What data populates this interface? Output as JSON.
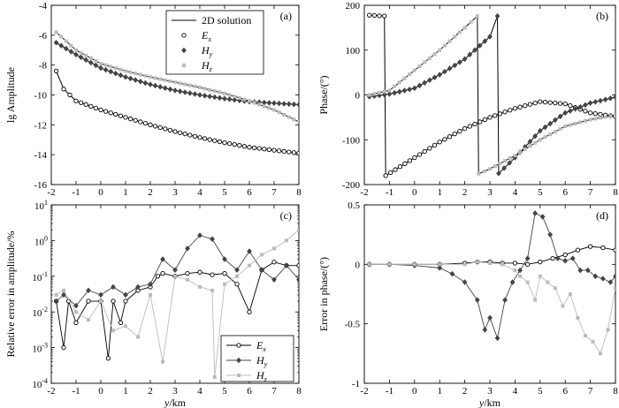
{
  "figure": {
    "legend_top": [
      {
        "label": "2D solution",
        "sym": "line"
      },
      {
        "label": "E",
        "sub": "x",
        "sym": "open-circle"
      },
      {
        "label": "H",
        "sub": "y",
        "sym": "diamond"
      },
      {
        "label": "H",
        "sub": "z",
        "sym": "gray-square"
      }
    ],
    "legend_bottom": [
      {
        "label": "E",
        "sub": "x",
        "sym": "open-circle"
      },
      {
        "label": "H",
        "sub": "y",
        "sym": "diamond"
      },
      {
        "label": "H",
        "sub": "z",
        "sym": "gray-square"
      }
    ],
    "xlabel_var": "y",
    "xlabel_unit": "/km",
    "colors": {
      "ex": "#000000",
      "hy": "#444444",
      "hz": "#bbbbbb",
      "solution": "#000000"
    }
  },
  "chart_data": [
    {
      "id": "a",
      "panel_label": "(a)",
      "type": "line",
      "ylabel": "lg Amplitude",
      "xlabel": "y/km",
      "xlim": [
        -2,
        8
      ],
      "ylim": [
        -16,
        -4
      ],
      "yscale": "linear",
      "xticks": [
        "-2",
        "-1",
        "0",
        "1",
        "2",
        "3",
        "4",
        "5",
        "6",
        "7",
        "8"
      ],
      "yticks": [
        "-4",
        "-6",
        "-8",
        "-10",
        "-12",
        "-14",
        "-16"
      ],
      "series": [
        {
          "name": "Ex",
          "x": [
            -1.8,
            -1.5,
            -1,
            0,
            1,
            2,
            3,
            4,
            5,
            6,
            7,
            8
          ],
          "y": [
            -8.4,
            -9.6,
            -10.4,
            -11.0,
            -11.5,
            -12.0,
            -12.45,
            -12.85,
            -13.2,
            -13.5,
            -13.7,
            -13.9
          ]
        },
        {
          "name": "Hy",
          "x": [
            -1.8,
            -1,
            0,
            1,
            2,
            3,
            4,
            5,
            6,
            7,
            8
          ],
          "y": [
            -6.5,
            -7.3,
            -8.2,
            -8.8,
            -9.3,
            -9.7,
            -10.0,
            -10.25,
            -10.45,
            -10.55,
            -10.65
          ]
        },
        {
          "name": "Hz",
          "x": [
            -1.8,
            -1,
            0,
            1,
            2,
            3,
            4,
            5,
            6,
            7,
            8
          ],
          "y": [
            -5.8,
            -7.0,
            -7.9,
            -8.4,
            -8.8,
            -9.15,
            -9.5,
            -9.9,
            -10.4,
            -11.0,
            -11.8
          ]
        }
      ]
    },
    {
      "id": "b",
      "panel_label": "(b)",
      "type": "line",
      "ylabel": "Phase/(°)",
      "xlabel": "y/km",
      "xlim": [
        -2,
        8
      ],
      "ylim": [
        -200,
        200
      ],
      "yscale": "linear",
      "xticks": [
        "-2",
        "-1",
        "0",
        "1",
        "2",
        "3",
        "4",
        "5",
        "6",
        "7",
        "8"
      ],
      "yticks": [
        "200",
        "100",
        "0",
        "-100",
        "-200"
      ],
      "series": [
        {
          "name": "Ex",
          "x": [
            -1.8,
            -1.2,
            -1.15,
            0,
            1,
            2,
            3,
            4,
            5,
            6,
            7,
            8
          ],
          "y": [
            178,
            176,
            -180,
            -140,
            -105,
            -75,
            -50,
            -30,
            -15,
            -20,
            -40,
            -48
          ]
        },
        {
          "name": "Hy",
          "x": [
            -1.8,
            -1,
            0,
            1,
            2,
            3,
            3.3,
            3.35,
            4,
            5,
            6,
            7,
            8
          ],
          "y": [
            -4,
            2,
            15,
            45,
            80,
            130,
            176,
            -175,
            -140,
            -80,
            -40,
            -18,
            -5
          ]
        },
        {
          "name": "Hz",
          "x": [
            -1.8,
            -1,
            0,
            1,
            2,
            2.5,
            2.55,
            3,
            4,
            5,
            6,
            7,
            8
          ],
          "y": [
            0,
            10,
            55,
            100,
            150,
            176,
            -176,
            -165,
            -135,
            -100,
            -70,
            -55,
            -45
          ]
        }
      ]
    },
    {
      "id": "c",
      "panel_label": "(c)",
      "type": "line",
      "ylabel": "Relative error in amplitude/%",
      "xlabel": "y/km",
      "xlim": [
        -2,
        8
      ],
      "ylim": [
        -4,
        1
      ],
      "yscale": "log10",
      "xticks": [
        "-2",
        "-1",
        "0",
        "1",
        "2",
        "3",
        "4",
        "5",
        "6",
        "7",
        "8"
      ],
      "yticks": [
        "10^1",
        "10^0",
        "10^-1",
        "10^-2",
        "10^-3",
        "10^-4"
      ],
      "series": [
        {
          "name": "Ex",
          "x": [
            -1.8,
            -1.5,
            -1.3,
            -1,
            -0.5,
            0,
            0.3,
            0.5,
            0.8,
            1,
            1.5,
            2,
            2.3,
            2.5,
            3,
            3.5,
            4,
            4.5,
            5,
            5.5,
            6,
            6.5,
            7,
            7.5,
            8
          ],
          "y": [
            0.02,
            0.001,
            0.02,
            0.005,
            0.02,
            0.02,
            0.0005,
            0.02,
            0.005,
            0.02,
            0.04,
            0.05,
            0.1,
            0.12,
            0.1,
            0.12,
            0.13,
            0.11,
            0.12,
            0.06,
            0.01,
            0.15,
            0.25,
            0.2,
            0.2
          ]
        },
        {
          "name": "Hy",
          "x": [
            -1.8,
            -1.5,
            -1,
            -0.5,
            0,
            0.5,
            1,
            1.5,
            2,
            2.5,
            3,
            3.5,
            4,
            4.5,
            5,
            5.5,
            6,
            6.5,
            7,
            7.5,
            8
          ],
          "y": [
            0.02,
            0.03,
            0.015,
            0.04,
            0.03,
            0.05,
            0.03,
            0.05,
            0.06,
            0.3,
            0.15,
            0.6,
            1.4,
            1.1,
            0.3,
            0.15,
            0.5,
            0.15,
            0.08,
            0.2,
            0.08
          ]
        },
        {
          "name": "Hz",
          "x": [
            -1.8,
            -1.5,
            -1,
            -0.5,
            0,
            0.5,
            1,
            1.5,
            2,
            2.5,
            3,
            3.5,
            4,
            4.5,
            4.6,
            5,
            5.5,
            6,
            6.5,
            7,
            7.5,
            8
          ],
          "y": [
            0.03,
            0.04,
            0.01,
            0.006,
            0.02,
            0.003,
            0.004,
            0.002,
            0.03,
            0.0004,
            0.1,
            0.08,
            0.05,
            0.04,
            0.00015,
            0.06,
            0.1,
            0.2,
            0.4,
            0.6,
            1.0,
            2.0
          ]
        }
      ]
    },
    {
      "id": "d",
      "panel_label": "(d)",
      "type": "line",
      "ylabel": "Error in phase/(°)",
      "xlabel": "y/km",
      "xlim": [
        -2,
        8
      ],
      "ylim": [
        -1,
        0.5
      ],
      "yscale": "linear",
      "xticks": [
        "-2",
        "-1",
        "0",
        "1",
        "2",
        "3",
        "4",
        "5",
        "6",
        "7",
        "8"
      ],
      "yticks": [
        "0.5",
        "0",
        "-0.5",
        "-1"
      ],
      "series": [
        {
          "name": "Ex",
          "x": [
            -1.8,
            -1,
            0,
            1,
            2,
            2.5,
            3,
            3.5,
            4,
            4.5,
            5,
            5.5,
            6,
            6.5,
            7,
            7.5,
            8
          ],
          "y": [
            0,
            0,
            0,
            0,
            0.01,
            0.02,
            0.02,
            0.01,
            0.01,
            0,
            0.02,
            0.05,
            0.08,
            0.12,
            0.15,
            0.14,
            0.12
          ]
        },
        {
          "name": "Hy",
          "x": [
            -1.8,
            -1,
            0,
            1,
            1.5,
            2,
            2.5,
            2.8,
            3,
            3.3,
            3.6,
            3.9,
            4.2,
            4.5,
            4.8,
            5.1,
            5.4,
            5.7,
            6,
            6.3,
            6.6,
            6.9,
            7.2,
            7.5,
            7.8,
            8
          ],
          "y": [
            0,
            0,
            -0.01,
            -0.03,
            -0.08,
            -0.15,
            -0.3,
            -0.55,
            -0.45,
            -0.62,
            -0.3,
            -0.15,
            -0.05,
            0.05,
            0.43,
            0.4,
            0.25,
            0.05,
            0.03,
            0.05,
            -0.05,
            -0.05,
            -0.1,
            -0.12,
            -0.15,
            -0.1
          ]
        },
        {
          "name": "Hz",
          "x": [
            -1.8,
            -1,
            0,
            1,
            2,
            2.5,
            3,
            3.5,
            4,
            4.2,
            4.5,
            4.8,
            5,
            5.3,
            5.6,
            5.9,
            6.2,
            6.5,
            6.8,
            7.1,
            7.4,
            7.7,
            8
          ],
          "y": [
            0,
            0,
            0,
            0,
            0,
            0.02,
            0.01,
            0,
            -0.05,
            -0.1,
            -0.15,
            -0.3,
            -0.1,
            -0.15,
            -0.2,
            -0.35,
            -0.25,
            -0.45,
            -0.6,
            -0.65,
            -0.75,
            -0.55,
            -0.2
          ]
        }
      ]
    }
  ]
}
